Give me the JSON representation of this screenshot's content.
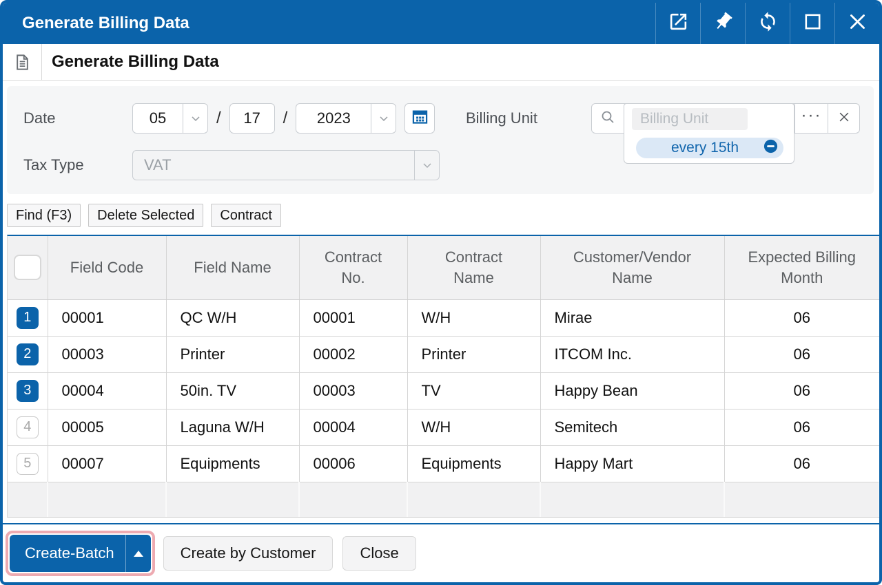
{
  "colors": {
    "accent": "#0b63aa",
    "pill_bg": "#dbe8f6",
    "pill_text": "#1266ad",
    "highlight_ring": "#edaab1"
  },
  "titlebar": {
    "title": "Generate Billing Data",
    "actions": [
      "open-in-new-window",
      "pin",
      "refresh",
      "maximize",
      "close"
    ]
  },
  "header": {
    "title": "Generate Billing Data"
  },
  "form": {
    "date_label": "Date",
    "date": {
      "month": "05",
      "day": "17",
      "year": "2023"
    },
    "date_separator": "/",
    "tax_label": "Tax Type",
    "tax_value": "VAT",
    "billing_unit_label": "Billing Unit",
    "billing_unit_placeholder": "Billing Unit",
    "billing_unit_more": "···",
    "billing_unit_selected": "every 15th"
  },
  "toolbar": {
    "find": "Find (F3)",
    "delete_selected": "Delete Selected",
    "contract": "Contract"
  },
  "table": {
    "columns": [
      {
        "key": "select",
        "label": ""
      },
      {
        "key": "field_code",
        "label": "Field Code"
      },
      {
        "key": "field_name",
        "label": "Field Name"
      },
      {
        "key": "contract_no",
        "label": "Contract\nNo."
      },
      {
        "key": "contract_name",
        "label": "Contract\nName"
      },
      {
        "key": "customer_vendor_name",
        "label": "Customer/Vendor\nName"
      },
      {
        "key": "expected_billing_month",
        "label": "Expected Billing\nMonth"
      }
    ],
    "rows": [
      {
        "num": "1",
        "selected": true,
        "cells": [
          "00001",
          "QC W/H",
          "00001",
          "W/H",
          "Mirae",
          "06"
        ]
      },
      {
        "num": "2",
        "selected": true,
        "cells": [
          "00003",
          "Printer",
          "00002",
          "Printer",
          "ITCOM Inc.",
          "06"
        ]
      },
      {
        "num": "3",
        "selected": true,
        "cells": [
          "00004",
          "50in. TV",
          "00003",
          "TV",
          "Happy Bean",
          "06"
        ]
      },
      {
        "num": "4",
        "selected": false,
        "cells": [
          "00005",
          "Laguna W/H",
          "00004",
          "W/H",
          "Semitech",
          "06"
        ]
      },
      {
        "num": "5",
        "selected": false,
        "cells": [
          "00007",
          "Equipments",
          "00006",
          "Equipments",
          "Happy Mart",
          "06"
        ]
      }
    ]
  },
  "footer": {
    "create_batch": "Create-Batch",
    "create_by_customer": "Create by Customer",
    "close": "Close"
  }
}
